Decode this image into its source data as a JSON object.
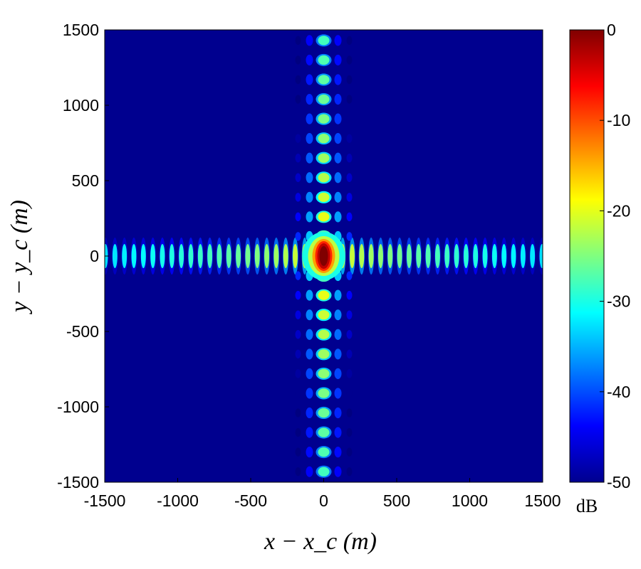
{
  "chart_data": {
    "type": "heatmap",
    "xlabel": "x − x_c (m)",
    "ylabel": "y − y_c (m)",
    "xlim": [
      -1500,
      1500
    ],
    "ylim": [
      -1500,
      1500
    ],
    "xticks": [
      -1500,
      -1000,
      -500,
      0,
      500,
      1000,
      1500
    ],
    "yticks": [
      -1500,
      -1000,
      -500,
      0,
      500,
      1000,
      1500
    ],
    "xtick_labels": [
      "-1500",
      "-1000",
      "-500",
      "0",
      "500",
      "1000",
      "1500"
    ],
    "ytick_labels": [
      "-1500",
      "-1000",
      "-500",
      "0",
      "500",
      "1000",
      "1500"
    ],
    "peak": {
      "x": 0,
      "y": 0,
      "value_db": 0
    },
    "x_sidelobe_spacing_m": 65,
    "y_sidelobe_spacing_m": 130,
    "colorbar": {
      "label": "dB",
      "range": [
        -50,
        0
      ],
      "ticks": [
        0,
        -10,
        -20,
        -30,
        -40,
        -50
      ],
      "tick_labels": [
        "0",
        "-10",
        "-20",
        "-30",
        "-40",
        "-50"
      ],
      "colormap": "jet"
    },
    "colors": {
      "background": "#00008f",
      "jet": [
        "#00008f",
        "#0000ff",
        "#00ffff",
        "#ffff00",
        "#ff0000",
        "#800000"
      ]
    }
  }
}
